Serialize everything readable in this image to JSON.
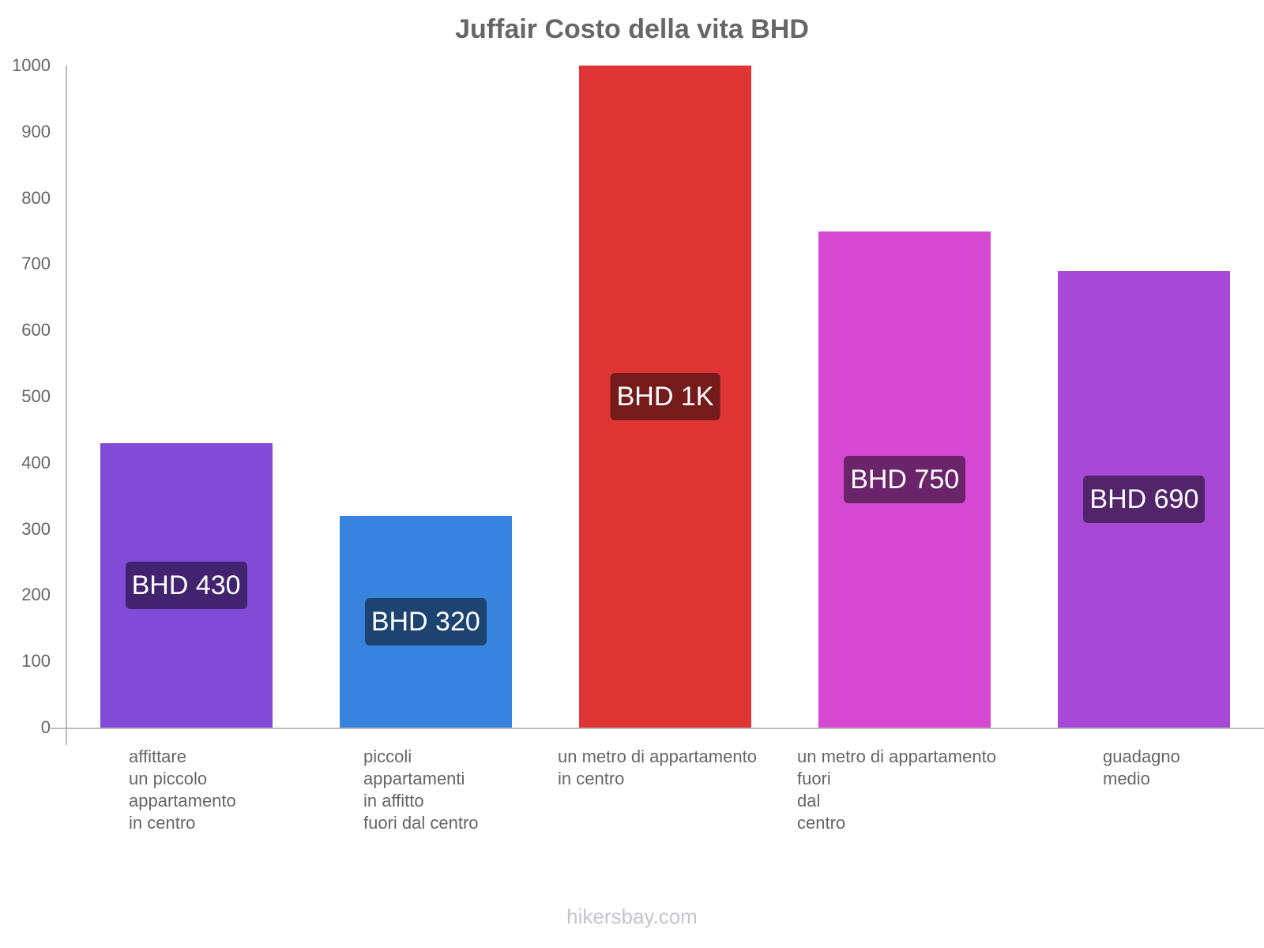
{
  "chart_data": {
    "type": "bar",
    "title": "Juffair Costo della vita BHD",
    "xlabel": "",
    "ylabel": "",
    "ylim": [
      0,
      1000
    ],
    "yticks": [
      0,
      100,
      200,
      300,
      400,
      500,
      600,
      700,
      800,
      900,
      1000
    ],
    "grid": false,
    "legend": null,
    "categories": [
      "affittare un piccolo appartamento in centro",
      "piccoli appartamenti in affitto fuori dal centro",
      "un metro di appartamento in centro",
      "un metro di appartamento fuori dal centro",
      "guadagno medio"
    ],
    "category_labels_display": [
      "affittare\nun piccolo\nappartamento\nin centro",
      "piccoli\nappartamenti\nin affitto\nfuori dal centro",
      "un metro di appartamento\nin centro",
      "un metro di appartamento\nfuori\ndal\ncentro",
      "guadagno\nmedio"
    ],
    "values": [
      430,
      320,
      1000,
      750,
      690
    ],
    "value_labels": [
      "BHD 430",
      "BHD 320",
      "BHD 1K",
      "BHD 750",
      "BHD 690"
    ],
    "colors": [
      "#824bd7",
      "#3783de",
      "#e03535",
      "#d648d1",
      "#a748d6"
    ],
    "label_bg_colors": [
      "#42236f",
      "#1d4370",
      "#761b1b",
      "#6b246a",
      "#52246a"
    ]
  },
  "footer": {
    "watermark": "hikersbay.com"
  }
}
